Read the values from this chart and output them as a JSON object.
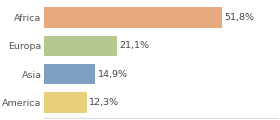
{
  "categories": [
    "Africa",
    "Europa",
    "Asia",
    "America"
  ],
  "values": [
    51.8,
    21.1,
    14.9,
    12.3
  ],
  "labels": [
    "51,8%",
    "21,1%",
    "14,9%",
    "12,3%"
  ],
  "bar_colors": [
    "#e8a97e",
    "#b5c98e",
    "#7f9fc0",
    "#e8d07a"
  ],
  "background_color": "#ffffff",
  "xlim": [
    0,
    68
  ],
  "label_fontsize": 6.8,
  "tick_fontsize": 6.8,
  "bar_height": 0.72
}
